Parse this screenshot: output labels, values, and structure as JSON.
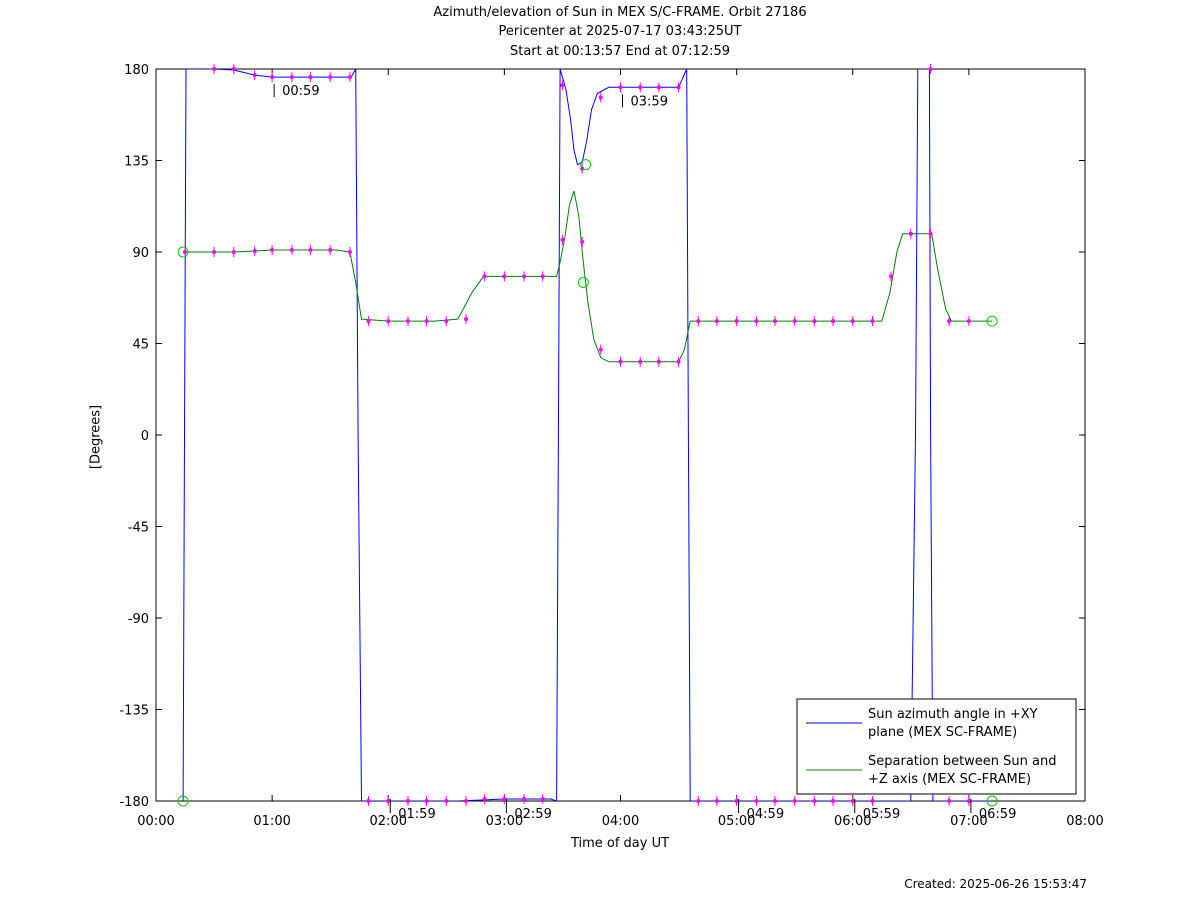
{
  "chart_data": {
    "type": "line",
    "title_lines": [
      "Azimuth/elevation of Sun in MEX S/C-FRAME.  Orbit 27186",
      "Pericenter at 2025-07-17 03:43:25UT",
      "Start at 00:13:57 End at 07:12:59"
    ],
    "xlabel": "Time of day UT",
    "ylabel": "[Degrees]",
    "xlim": [
      0,
      8
    ],
    "ylim": [
      -180,
      180
    ],
    "x_ticks": [
      {
        "v": 0,
        "label": "00:00"
      },
      {
        "v": 1,
        "label": "01:00"
      },
      {
        "v": 2,
        "label": "02:00"
      },
      {
        "v": 3,
        "label": "03:00"
      },
      {
        "v": 4,
        "label": "04:00"
      },
      {
        "v": 5,
        "label": "05:00"
      },
      {
        "v": 6,
        "label": "06:00"
      },
      {
        "v": 7,
        "label": "07:00"
      },
      {
        "v": 8,
        "label": "08:00"
      }
    ],
    "y_ticks": [
      {
        "v": 180,
        "label": "180"
      },
      {
        "v": 135,
        "label": "135"
      },
      {
        "v": 90,
        "label": "90"
      },
      {
        "v": 45,
        "label": "45"
      },
      {
        "v": 0,
        "label": "0"
      },
      {
        "v": -45,
        "label": "-45"
      },
      {
        "v": -90,
        "label": "-90"
      },
      {
        "v": -135,
        "label": "-135"
      },
      {
        "v": -180,
        "label": "-180"
      }
    ],
    "grid": false,
    "legend_position": "bottom-right",
    "series": [
      {
        "name": "Sun azimuth angle in +XY plane (MEX SC-FRAME)",
        "legend_lines": [
          "Sun azimuth angle in +XY",
          "plane (MEX SC-FRAME)"
        ],
        "color": "#0000ff",
        "points": [
          [
            0.233,
            -180
          ],
          [
            0.245,
            0
          ],
          [
            0.258,
            180
          ],
          [
            0.5,
            180
          ],
          [
            0.67,
            179.5
          ],
          [
            0.85,
            177
          ],
          [
            1.0,
            176
          ],
          [
            1.3,
            176
          ],
          [
            1.55,
            176
          ],
          [
            1.68,
            176
          ],
          [
            1.72,
            180
          ],
          [
            1.74,
            0
          ],
          [
            1.77,
            -180
          ],
          [
            2.2,
            -180
          ],
          [
            2.6,
            -180
          ],
          [
            3.0,
            -179
          ],
          [
            3.2,
            -179
          ],
          [
            3.4,
            -179
          ],
          [
            3.45,
            -180
          ],
          [
            3.465,
            0
          ],
          [
            3.48,
            180
          ],
          [
            3.53,
            170
          ],
          [
            3.57,
            155
          ],
          [
            3.6,
            140
          ],
          [
            3.63,
            133
          ],
          [
            3.67,
            134
          ],
          [
            3.71,
            145
          ],
          [
            3.75,
            160
          ],
          [
            3.8,
            168
          ],
          [
            3.9,
            171
          ],
          [
            4.1,
            171
          ],
          [
            4.5,
            171
          ],
          [
            4.57,
            180
          ],
          [
            4.585,
            0
          ],
          [
            4.6,
            -180
          ],
          [
            5.0,
            -180
          ],
          [
            5.5,
            -180
          ],
          [
            6.0,
            -180
          ],
          [
            6.5,
            -180
          ],
          [
            6.54,
            0
          ],
          [
            6.56,
            180
          ],
          [
            6.66,
            180
          ],
          [
            6.67,
            0
          ],
          [
            6.69,
            -180
          ],
          [
            7.2,
            -180
          ]
        ]
      },
      {
        "name": "Separation between Sun and +Z axis (MEX SC-FRAME)",
        "legend_lines": [
          "Separation between Sun and",
          "+Z axis (MEX SC-FRAME)"
        ],
        "color": "#008000",
        "points": [
          [
            0.233,
            90
          ],
          [
            0.5,
            90
          ],
          [
            0.67,
            90
          ],
          [
            0.85,
            90.5
          ],
          [
            1.0,
            91
          ],
          [
            1.3,
            91
          ],
          [
            1.55,
            91
          ],
          [
            1.67,
            90
          ],
          [
            1.72,
            75
          ],
          [
            1.77,
            57
          ],
          [
            2.0,
            56
          ],
          [
            2.4,
            56
          ],
          [
            2.6,
            57
          ],
          [
            2.72,
            70
          ],
          [
            2.82,
            78
          ],
          [
            3.0,
            78
          ],
          [
            3.2,
            78
          ],
          [
            3.45,
            78
          ],
          [
            3.48,
            85
          ],
          [
            3.52,
            97
          ],
          [
            3.56,
            113
          ],
          [
            3.6,
            120
          ],
          [
            3.64,
            108
          ],
          [
            3.68,
            85
          ],
          [
            3.72,
            65
          ],
          [
            3.77,
            47
          ],
          [
            3.83,
            38
          ],
          [
            3.9,
            36
          ],
          [
            4.1,
            36
          ],
          [
            4.5,
            36
          ],
          [
            4.55,
            42
          ],
          [
            4.6,
            56
          ],
          [
            4.9,
            56
          ],
          [
            5.5,
            56
          ],
          [
            6.0,
            56
          ],
          [
            6.25,
            56
          ],
          [
            6.32,
            70
          ],
          [
            6.38,
            90
          ],
          [
            6.43,
            99
          ],
          [
            6.55,
            99
          ],
          [
            6.68,
            99
          ],
          [
            6.73,
            82
          ],
          [
            6.8,
            62
          ],
          [
            6.85,
            56
          ],
          [
            7.0,
            56
          ],
          [
            7.2,
            56
          ]
        ]
      }
    ],
    "markers": [
      [
        0.5,
        180
      ],
      [
        0.67,
        180
      ],
      [
        0.85,
        177
      ],
      [
        1.0,
        176
      ],
      [
        1.17,
        176
      ],
      [
        1.33,
        176
      ],
      [
        1.5,
        176
      ],
      [
        1.67,
        176
      ],
      [
        0.25,
        90
      ],
      [
        0.5,
        90
      ],
      [
        0.67,
        90
      ],
      [
        0.85,
        90.5
      ],
      [
        1.0,
        91
      ],
      [
        1.17,
        91
      ],
      [
        1.33,
        91
      ],
      [
        1.5,
        91
      ],
      [
        1.67,
        90
      ],
      [
        1.83,
        56
      ],
      [
        2.0,
        56
      ],
      [
        2.17,
        56
      ],
      [
        2.33,
        56
      ],
      [
        2.5,
        56
      ],
      [
        2.67,
        57
      ],
      [
        2.83,
        78
      ],
      [
        3.0,
        78
      ],
      [
        3.17,
        78
      ],
      [
        3.33,
        78
      ],
      [
        1.83,
        -180
      ],
      [
        2.0,
        -180
      ],
      [
        2.17,
        -180
      ],
      [
        2.33,
        -180
      ],
      [
        2.5,
        -180
      ],
      [
        2.67,
        -180
      ],
      [
        2.83,
        -179
      ],
      [
        3.0,
        -179
      ],
      [
        3.17,
        -179
      ],
      [
        3.33,
        -179
      ],
      [
        3.5,
        172
      ],
      [
        3.67,
        131
      ],
      [
        3.83,
        166
      ],
      [
        4.0,
        171
      ],
      [
        4.17,
        171
      ],
      [
        4.33,
        171
      ],
      [
        4.5,
        171
      ],
      [
        3.5,
        96
      ],
      [
        3.67,
        95
      ],
      [
        3.83,
        42
      ],
      [
        4.0,
        36
      ],
      [
        4.17,
        36
      ],
      [
        4.33,
        36
      ],
      [
        4.5,
        36
      ],
      [
        4.67,
        56
      ],
      [
        4.83,
        56
      ],
      [
        5.0,
        56
      ],
      [
        5.17,
        56
      ],
      [
        5.33,
        56
      ],
      [
        5.5,
        56
      ],
      [
        5.67,
        56
      ],
      [
        5.83,
        56
      ],
      [
        6.0,
        56
      ],
      [
        6.17,
        56
      ],
      [
        4.67,
        -180
      ],
      [
        4.83,
        -180
      ],
      [
        5.0,
        -180
      ],
      [
        5.17,
        -180
      ],
      [
        5.33,
        -180
      ],
      [
        5.5,
        -180
      ],
      [
        5.67,
        -180
      ],
      [
        5.83,
        -180
      ],
      [
        6.0,
        -180
      ],
      [
        6.17,
        -180
      ],
      [
        6.33,
        78
      ],
      [
        6.5,
        99
      ],
      [
        6.67,
        99
      ],
      [
        6.83,
        56
      ],
      [
        7.0,
        56
      ],
      [
        6.67,
        180
      ],
      [
        6.83,
        -180
      ],
      [
        7.0,
        -180
      ]
    ],
    "circles": [
      [
        0.233,
        90
      ],
      [
        0.233,
        -180
      ],
      [
        3.7,
        133
      ],
      [
        3.68,
        75
      ],
      [
        7.2,
        56
      ],
      [
        7.2,
        -180
      ]
    ],
    "annotations": [
      {
        "x": 1.0,
        "y": 176,
        "label": "00:59",
        "pos": "below"
      },
      {
        "x": 4.0,
        "y": 171,
        "label": "03:59",
        "pos": "below"
      },
      {
        "x": 2.0,
        "y": -180,
        "label": "01:59",
        "pos": "above"
      },
      {
        "x": 3.0,
        "y": -180,
        "label": "02:59",
        "pos": "above"
      },
      {
        "x": 5.0,
        "y": -180,
        "label": "04:59",
        "pos": "above"
      },
      {
        "x": 6.0,
        "y": -180,
        "label": "05:59",
        "pos": "above"
      },
      {
        "x": 7.0,
        "y": -180,
        "label": "06:59",
        "pos": "above"
      }
    ]
  },
  "footer": {
    "created": "Created: 2025-06-26 15:53:47"
  }
}
